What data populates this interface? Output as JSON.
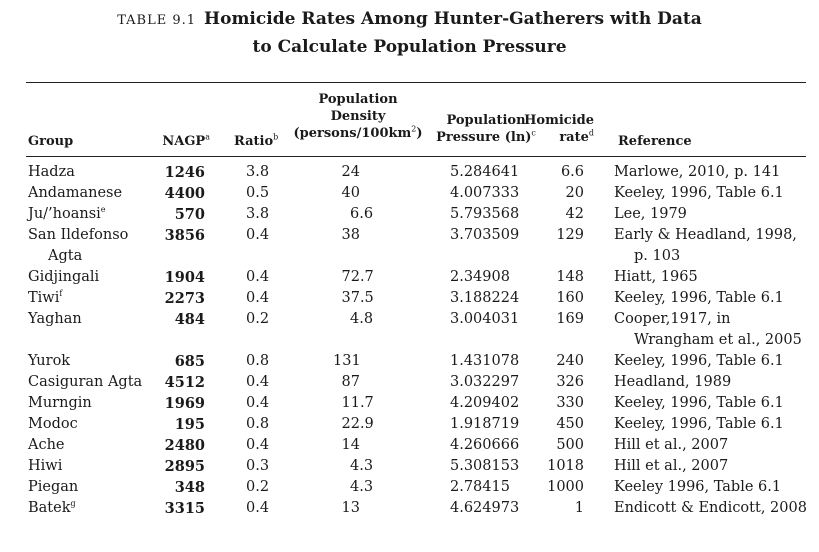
{
  "table_label": "TABLE 9.1",
  "title_line1": "Homicide Rates Among Hunter-Gatherers with Data",
  "title_line2": "to Calculate Population Pressure",
  "headers": {
    "group": "Group",
    "nagp": "NAGP",
    "nagp_note": "a",
    "ratio": "Ratio",
    "ratio_note": "b",
    "density_l1": "Population",
    "density_l2": "Density",
    "density_l3": "(persons/100km",
    "density_sup": "2",
    "density_close": ")",
    "pressure_l1": "Population",
    "pressure_l2": "Pressure (ln)",
    "pressure_note": "c",
    "homicide_l1": "Homicide",
    "homicide_l2": "rate",
    "homicide_note": "d",
    "reference": "Reference"
  },
  "rows": [
    {
      "group": "Hadza",
      "nagp": "1246",
      "ratio": "3.8",
      "density": "24",
      "pressure": "5.284641",
      "homicide": "6.6",
      "reference": "Marlowe, 2010, p. 141"
    },
    {
      "group": "Andamanese",
      "nagp": "4400",
      "ratio": "0.5",
      "density": "40",
      "pressure": "4.007333",
      "homicide": "20",
      "reference": "Keeley, 1996, Table 6.1"
    },
    {
      "group": "Ju/’hoansi",
      "group_note": "e",
      "nagp": "570",
      "ratio": "3.8",
      "density": "6.6",
      "pressure": "5.793568",
      "homicide": "42",
      "reference": "Lee, 1979"
    },
    {
      "group": "San Ildefonso",
      "group2": "Agta",
      "nagp": "3856",
      "ratio": "0.4",
      "density": "38",
      "pressure": "3.703509",
      "homicide": "129",
      "reference": "Early & Headland, 1998,",
      "reference2": "p. 103"
    },
    {
      "group": "Gidjingali",
      "nagp": "1904",
      "ratio": "0.4",
      "density": "72.7",
      "pressure": "2.34908",
      "homicide": "148",
      "reference": "Hiatt, 1965"
    },
    {
      "group": "Tiwi",
      "group_note": "f",
      "nagp": "2273",
      "ratio": "0.4",
      "density": "37.5",
      "pressure": "3.188224",
      "homicide": "160",
      "reference": "Keeley, 1996, Table 6.1"
    },
    {
      "group": "Yaghan",
      "nagp": "484",
      "ratio": "0.2",
      "density": "4.8",
      "pressure": "3.004031",
      "homicide": "169",
      "reference": "Cooper,1917, in",
      "reference2": "Wrangham et al., 2005"
    },
    {
      "group": "Yurok",
      "nagp": "685",
      "ratio": "0.8",
      "density": "131",
      "pressure": "1.431078",
      "homicide": "240",
      "reference": "Keeley, 1996, Table 6.1"
    },
    {
      "group": "Casiguran Agta",
      "nagp": "4512",
      "ratio": "0.4",
      "density": "87",
      "pressure": "3.032297",
      "homicide": "326",
      "reference": "Headland, 1989"
    },
    {
      "group": "Murngin",
      "nagp": "1969",
      "ratio": "0.4",
      "density": "11.7",
      "pressure": "4.209402",
      "homicide": "330",
      "reference": "Keeley, 1996, Table 6.1"
    },
    {
      "group": "Modoc",
      "nagp": "195",
      "ratio": "0.8",
      "density": "22.9",
      "pressure": "1.918719",
      "homicide": "450",
      "reference": "Keeley, 1996, Table 6.1"
    },
    {
      "group": "Ache",
      "nagp": "2480",
      "ratio": "0.4",
      "density": "14",
      "pressure": "4.260666",
      "homicide": "500",
      "reference": "Hill et al., 2007"
    },
    {
      "group": "Hiwi",
      "nagp": "2895",
      "ratio": "0.3",
      "density": "4.3",
      "pressure": "5.308153",
      "homicide": "1018",
      "reference": "Hill et al., 2007"
    },
    {
      "group": "Piegan",
      "nagp": "348",
      "ratio": "0.2",
      "density": "4.3",
      "pressure": "2.78415",
      "homicide": "1000",
      "reference": "Keeley 1996, Table 6.1"
    },
    {
      "group": "Batek",
      "group_note": "g",
      "nagp": "3315",
      "ratio": "0.4",
      "density": "13",
      "pressure": "4.624973",
      "homicide": "1",
      "reference": "Endicott & Endicott, 2008"
    }
  ]
}
